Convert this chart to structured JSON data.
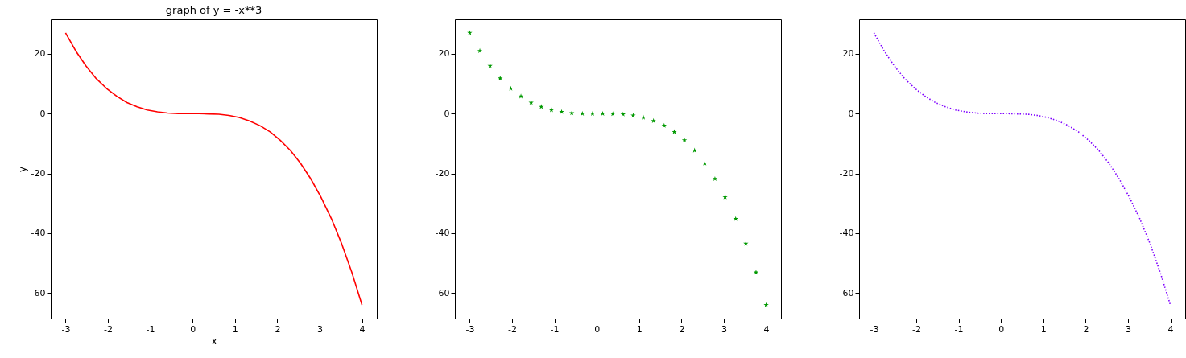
{
  "chart_data": [
    {
      "type": "line",
      "title": "graph of y = -x**3",
      "xlabel": "x",
      "ylabel": "y",
      "x": [
        -3,
        -2.76,
        -2.52,
        -2.28,
        -2.03,
        -1.79,
        -1.55,
        -1.31,
        -1.07,
        -0.83,
        -0.59,
        -0.34,
        -0.1,
        0.14,
        0.38,
        0.62,
        0.86,
        1.1,
        1.34,
        1.59,
        1.83,
        2.07,
        2.31,
        2.55,
        2.79,
        3.03,
        3.28,
        3.52,
        3.76,
        4
      ],
      "series": [
        {
          "color": "#ff0000",
          "values": [
            27,
            21,
            16,
            11.8,
            8.4,
            5.8,
            3.7,
            2.3,
            1.2,
            0.6,
            0.2,
            0,
            0,
            0,
            -0.1,
            -0.2,
            -0.6,
            -1.3,
            -2.4,
            -4,
            -6.1,
            -8.9,
            -12.3,
            -16.6,
            -21.8,
            -27.9,
            -35.2,
            -43.5,
            -53.1,
            -64
          ]
        }
      ],
      "xlim": [
        -3.35,
        4.35
      ],
      "xticks": [
        -3,
        -2,
        -1,
        0,
        1,
        2,
        3,
        4
      ],
      "ylim": [
        -68.55,
        31.55
      ],
      "yticks": [
        -60,
        -40,
        -20,
        0,
        20
      ],
      "grid": false,
      "line_style": "solid"
    },
    {
      "type": "scatter",
      "x": [
        -3,
        -2.76,
        -2.52,
        -2.28,
        -2.03,
        -1.79,
        -1.55,
        -1.31,
        -1.07,
        -0.83,
        -0.59,
        -0.34,
        -0.1,
        0.14,
        0.38,
        0.62,
        0.86,
        1.1,
        1.34,
        1.59,
        1.83,
        2.07,
        2.31,
        2.55,
        2.79,
        3.03,
        3.28,
        3.52,
        3.76,
        4
      ],
      "series": [
        {
          "color": "#009900",
          "values": [
            27,
            21,
            16,
            11.8,
            8.4,
            5.8,
            3.7,
            2.3,
            1.2,
            0.6,
            0.2,
            0,
            0,
            0,
            -0.1,
            -0.2,
            -0.6,
            -1.3,
            -2.4,
            -4,
            -6.1,
            -8.9,
            -12.3,
            -16.6,
            -21.8,
            -27.9,
            -35.2,
            -43.5,
            -53.1,
            -64
          ]
        }
      ],
      "xlim": [
        -3.35,
        4.35
      ],
      "xticks": [
        -3,
        -2,
        -1,
        0,
        1,
        2,
        3,
        4
      ],
      "ylim": [
        -68.55,
        31.55
      ],
      "yticks": [
        -60,
        -40,
        -20,
        0,
        20
      ],
      "grid": false,
      "marker": "star"
    },
    {
      "type": "line",
      "x": [
        -3,
        -2.76,
        -2.52,
        -2.28,
        -2.03,
        -1.79,
        -1.55,
        -1.31,
        -1.07,
        -0.83,
        -0.59,
        -0.34,
        -0.1,
        0.14,
        0.38,
        0.62,
        0.86,
        1.1,
        1.34,
        1.59,
        1.83,
        2.07,
        2.31,
        2.55,
        2.79,
        3.03,
        3.28,
        3.52,
        3.76,
        4
      ],
      "series": [
        {
          "color": "#7f00ff",
          "values": [
            27,
            21,
            16,
            11.8,
            8.4,
            5.8,
            3.7,
            2.3,
            1.2,
            0.6,
            0.2,
            0,
            0,
            0,
            -0.1,
            -0.2,
            -0.6,
            -1.3,
            -2.4,
            -4,
            -6.1,
            -8.9,
            -12.3,
            -16.6,
            -21.8,
            -27.9,
            -35.2,
            -43.5,
            -53.1,
            -64
          ]
        }
      ],
      "xlim": [
        -3.35,
        4.35
      ],
      "xticks": [
        -3,
        -2,
        -1,
        0,
        1,
        2,
        3,
        4
      ],
      "ylim": [
        -68.55,
        31.55
      ],
      "yticks": [
        -60,
        -40,
        -20,
        0,
        20
      ],
      "grid": false,
      "line_style": "dotted"
    }
  ]
}
